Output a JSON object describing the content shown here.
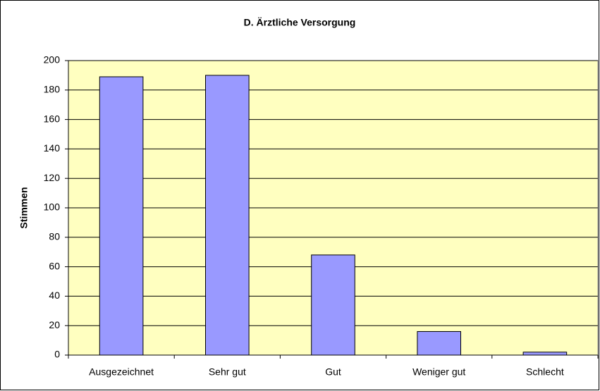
{
  "chart_data": {
    "type": "bar",
    "title": "D. Ärztliche Versorgung",
    "y_label": "Stimmen",
    "categories": [
      "Ausgezeichnet",
      "Sehr gut",
      "Gut",
      "Weniger gut",
      "Schlecht"
    ],
    "values": [
      189,
      190,
      68,
      16,
      2
    ],
    "color": "#9999ff",
    "ylim": [
      0,
      200
    ],
    "yticks": [
      0,
      20,
      40,
      60,
      80,
      100,
      120,
      140,
      160,
      180,
      200
    ],
    "grid": true
  }
}
